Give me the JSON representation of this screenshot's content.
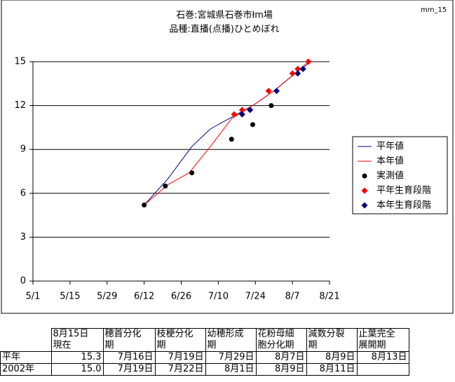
{
  "page_label": "mm_15",
  "chart_data": {
    "type": "line",
    "title": [
      "石巻:宮城県石巻市łm場",
      "品種:直播(点播)ひとめぼれ"
    ],
    "xlim": [
      0,
      112
    ],
    "xticks": [
      {
        "value": 0,
        "label": "5/1"
      },
      {
        "value": 14,
        "label": "5/15"
      },
      {
        "value": 28,
        "label": "5/29"
      },
      {
        "value": 42,
        "label": "6/12"
      },
      {
        "value": 56,
        "label": "6/26"
      },
      {
        "value": 70,
        "label": "7/10"
      },
      {
        "value": 84,
        "label": "7/24"
      },
      {
        "value": 98,
        "label": "8/7"
      },
      {
        "value": 112,
        "label": "8/21"
      }
    ],
    "ylim": [
      0,
      15
    ],
    "yticks": [
      0,
      3,
      6,
      9,
      12,
      15
    ],
    "grid": true,
    "legend": "right",
    "series": [
      {
        "name": "平年値",
        "type": "line",
        "color": "#000080",
        "x": [
          42,
          51,
          60,
          67,
          75,
          83,
          91,
          99,
          105
        ],
        "values": [
          5.2,
          7.0,
          9.2,
          10.4,
          11.2,
          12.0,
          13.0,
          14.2,
          15.0
        ]
      },
      {
        "name": "本年値",
        "type": "line",
        "color": "#ff0000",
        "x": [
          42,
          51,
          59,
          67,
          75,
          83,
          91,
          99,
          104
        ],
        "values": [
          5.2,
          6.6,
          7.4,
          9.2,
          11.1,
          12.0,
          13.0,
          14.2,
          15.0
        ]
      },
      {
        "name": "実測値",
        "type": "scatter",
        "marker": "circle",
        "color": "#000000",
        "x": [
          42,
          50,
          60,
          75,
          83,
          90
        ],
        "values": [
          5.2,
          6.5,
          7.4,
          9.7,
          10.7,
          12.0
        ]
      },
      {
        "name": "平年生育段階",
        "type": "scatter",
        "marker": "diamond",
        "color": "#ff0000",
        "x": [
          76,
          79,
          89,
          98,
          100,
          104
        ],
        "values": [
          11.4,
          11.7,
          13.0,
          14.2,
          14.5,
          15.0
        ]
      },
      {
        "name": "本年生育段階",
        "type": "scatter",
        "marker": "diamond",
        "color": "#000080",
        "x": [
          79,
          82,
          92,
          100,
          102
        ],
        "values": [
          11.4,
          11.7,
          13.0,
          14.2,
          14.5
        ]
      }
    ]
  },
  "table": {
    "header": [
      [
        "8月15日",
        "現在"
      ],
      [
        "穂首分化",
        "期"
      ],
      [
        "枝梗分化",
        "期"
      ],
      [
        "幼穂形成",
        "期"
      ],
      [
        "花粉母細",
        "胞分化期"
      ],
      [
        "減数分裂",
        "期"
      ],
      [
        "止葉完全",
        "展開期"
      ]
    ],
    "rows": [
      [
        "平年",
        "15.3",
        "7月16日",
        "7月19日",
        "7月29日",
        "8月7日",
        "8月9日",
        "8月13日"
      ],
      [
        "2002年",
        "15.0",
        "7月19日",
        "7月22日",
        "8月1日",
        "8月9日",
        "8月11日"
      ]
    ]
  }
}
